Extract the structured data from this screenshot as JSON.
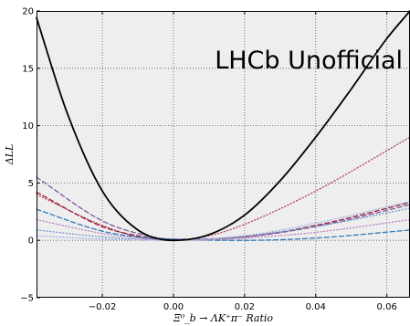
{
  "chart_data": {
    "type": "line",
    "title": "",
    "watermark": "LHCb Unofficial",
    "xlabel": "Ξ⁰_b → ΛK⁺π⁻ Ratio",
    "ylabel": "ΔLL",
    "xlim": [
      -0.0385,
      0.0665
    ],
    "ylim": [
      -5,
      20
    ],
    "xticks": [
      -0.02,
      0.0,
      0.02,
      0.04,
      0.06
    ],
    "xtick_labels": [
      "−0.02",
      "0.00",
      "0.02",
      "0.04",
      "0.06"
    ],
    "yticks": [
      -5,
      0,
      5,
      10,
      15,
      20
    ],
    "ytick_labels": [
      "−5",
      "0",
      "5",
      "10",
      "15",
      "20"
    ],
    "grid": true,
    "background": "#eeeeee",
    "series": [
      {
        "style": "solid",
        "color": "#000000",
        "x": [
          -0.0385,
          -0.03,
          -0.02,
          -0.01,
          0.0,
          0.01,
          0.02,
          0.03,
          0.04,
          0.05,
          0.06,
          0.0665
        ],
        "y": [
          19.4,
          11.2,
          4.3,
          0.9,
          0.0,
          0.5,
          2.2,
          5.2,
          9.0,
          13.2,
          17.6,
          20.0
        ]
      },
      {
        "style": "dotted",
        "color": "#b5495e",
        "x": [
          -0.0385,
          -0.02,
          -0.01,
          0.0,
          0.01,
          0.02,
          0.04,
          0.0665
        ],
        "y": [
          4.0,
          1.3,
          0.3,
          0.0,
          0.4,
          1.4,
          4.3,
          9.0
        ]
      },
      {
        "style": "dashed",
        "color": "#9a1f3a",
        "x": [
          -0.0385,
          -0.02,
          -0.01,
          0.0,
          0.02,
          0.04,
          0.0665
        ],
        "y": [
          4.2,
          1.2,
          0.4,
          0.05,
          0.3,
          1.3,
          3.3
        ]
      },
      {
        "style": "dashed",
        "color": "#7a5aa0",
        "x": [
          -0.0385,
          -0.02,
          -0.01,
          0.0,
          0.02,
          0.04,
          0.0665
        ],
        "y": [
          5.5,
          1.7,
          0.6,
          0.1,
          0.3,
          1.2,
          3.1
        ]
      },
      {
        "style": "dashed",
        "color": "#2d7ab8",
        "x": [
          -0.0385,
          -0.02,
          -0.01,
          0.0,
          0.02,
          0.04,
          0.0665
        ],
        "y": [
          2.7,
          0.8,
          0.3,
          0.1,
          0.0,
          0.2,
          0.9
        ]
      },
      {
        "style": "dotted",
        "color": "#7a9cd0",
        "x": [
          -0.0385,
          -0.02,
          -0.01,
          0.0,
          0.02,
          0.04,
          0.0665
        ],
        "y": [
          0.9,
          0.3,
          0.1,
          0.0,
          0.4,
          1.2,
          2.8
        ]
      },
      {
        "style": "dotted",
        "color": "#b889c0",
        "x": [
          -0.0385,
          -0.02,
          -0.01,
          0.0,
          0.02,
          0.04,
          0.0665
        ],
        "y": [
          1.8,
          0.6,
          0.2,
          0.0,
          0.2,
          0.7,
          1.8
        ]
      },
      {
        "style": "dotted",
        "color": "#a0b8e0",
        "x": [
          -0.0385,
          -0.02,
          -0.01,
          0.0,
          0.02,
          0.04,
          0.0665
        ],
        "y": [
          0.4,
          0.1,
          0.05,
          0.0,
          0.4,
          1.5,
          3.4
        ]
      }
    ]
  }
}
